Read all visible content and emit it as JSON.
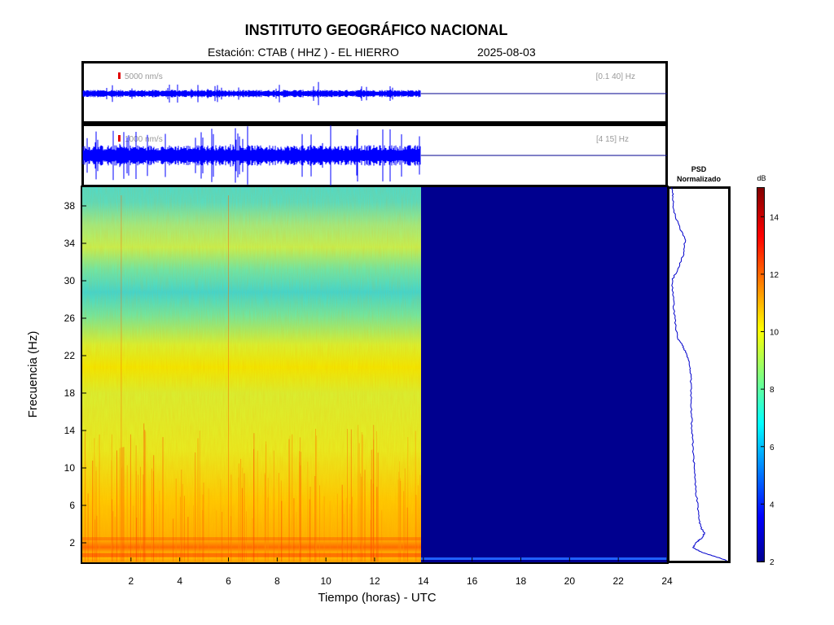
{
  "header": {
    "title": "INSTITUTO GEOGRÁFICO NACIONAL",
    "station": "Estación:  CTAB ( HHZ ) - EL HIERRO",
    "date": "2025-08-03"
  },
  "chart_data": [
    {
      "type": "line",
      "name": "seismogram-broadband",
      "scale_label": "5000 nm/s",
      "band_label": "[0.1 40] Hz",
      "data_end_hour": 13.9,
      "xlim": [
        0,
        24
      ]
    },
    {
      "type": "line",
      "name": "seismogram-filtered",
      "scale_label": "1000 nm/s",
      "band_label": "[4 15] Hz",
      "data_end_hour": 13.9,
      "xlim": [
        0,
        24
      ]
    },
    {
      "type": "heatmap",
      "name": "spectrogram",
      "xlabel": "Tiempo (horas) - UTC",
      "ylabel": "Frecuencia  (Hz)",
      "xlim": [
        0,
        24
      ],
      "ylim": [
        0,
        40
      ],
      "x_ticks": [
        "2",
        "4",
        "6",
        "8",
        "10",
        "12",
        "14",
        "16",
        "18",
        "20",
        "22",
        "24"
      ],
      "y_ticks": [
        "2",
        "6",
        "10",
        "14",
        "18",
        "22",
        "26",
        "30",
        "34",
        "38"
      ],
      "data_end_hour": 13.9,
      "profile_db": [
        {
          "f": 0.5,
          "db": 12.5
        },
        {
          "f": 1.5,
          "db": 10.5
        },
        {
          "f": 2.5,
          "db": 12.0
        },
        {
          "f": 4,
          "db": 11.0
        },
        {
          "f": 6,
          "db": 11.3
        },
        {
          "f": 8,
          "db": 10.6
        },
        {
          "f": 10,
          "db": 10.0
        },
        {
          "f": 12,
          "db": 9.8
        },
        {
          "f": 14,
          "db": 9.5
        },
        {
          "f": 16,
          "db": 9.3
        },
        {
          "f": 18,
          "db": 9.2
        },
        {
          "f": 20,
          "db": 9.1
        },
        {
          "f": 22,
          "db": 9.6
        },
        {
          "f": 23,
          "db": 9.4
        },
        {
          "f": 24,
          "db": 8.6
        },
        {
          "f": 26,
          "db": 7.8
        },
        {
          "f": 28,
          "db": 7.2
        },
        {
          "f": 30,
          "db": 7.3
        },
        {
          "f": 32,
          "db": 8.3
        },
        {
          "f": 34,
          "db": 8.6
        },
        {
          "f": 36,
          "db": 8.0
        },
        {
          "f": 38,
          "db": 7.7
        },
        {
          "f": 40,
          "db": 7.6
        }
      ]
    },
    {
      "type": "line",
      "name": "psd-profile",
      "title": "PSD\nNormalizado",
      "title_line1": "PSD",
      "title_line2": "Normalizado",
      "ylim": [
        0,
        40
      ],
      "curve": [
        {
          "f": 0.1,
          "v": 1.0
        },
        {
          "f": 0.5,
          "v": 0.8
        },
        {
          "f": 1.0,
          "v": 0.55
        },
        {
          "f": 1.5,
          "v": 0.4
        },
        {
          "f": 2.0,
          "v": 0.45
        },
        {
          "f": 2.5,
          "v": 0.55
        },
        {
          "f": 3.0,
          "v": 0.6
        },
        {
          "f": 3.5,
          "v": 0.55
        },
        {
          "f": 4.5,
          "v": 0.5
        },
        {
          "f": 6,
          "v": 0.48
        },
        {
          "f": 8,
          "v": 0.44
        },
        {
          "f": 10,
          "v": 0.42
        },
        {
          "f": 12,
          "v": 0.4
        },
        {
          "f": 14,
          "v": 0.38
        },
        {
          "f": 16,
          "v": 0.37
        },
        {
          "f": 18,
          "v": 0.36
        },
        {
          "f": 20,
          "v": 0.36
        },
        {
          "f": 21,
          "v": 0.34
        },
        {
          "f": 22,
          "v": 0.3
        },
        {
          "f": 23,
          "v": 0.22
        },
        {
          "f": 24,
          "v": 0.12
        },
        {
          "f": 26,
          "v": 0.08
        },
        {
          "f": 28,
          "v": 0.05
        },
        {
          "f": 30,
          "v": 0.03
        },
        {
          "f": 31.5,
          "v": 0.15
        },
        {
          "f": 33,
          "v": 0.24
        },
        {
          "f": 34.5,
          "v": 0.26
        },
        {
          "f": 36,
          "v": 0.14
        },
        {
          "f": 37.5,
          "v": 0.06
        },
        {
          "f": 39,
          "v": 0.05
        },
        {
          "f": 40,
          "v": 0.03
        }
      ]
    },
    {
      "type": "heatmap",
      "name": "colorbar",
      "title": "dB",
      "range": [
        2,
        15
      ],
      "ticks": [
        "2",
        "4",
        "6",
        "8",
        "10",
        "12",
        "14"
      ]
    }
  ]
}
